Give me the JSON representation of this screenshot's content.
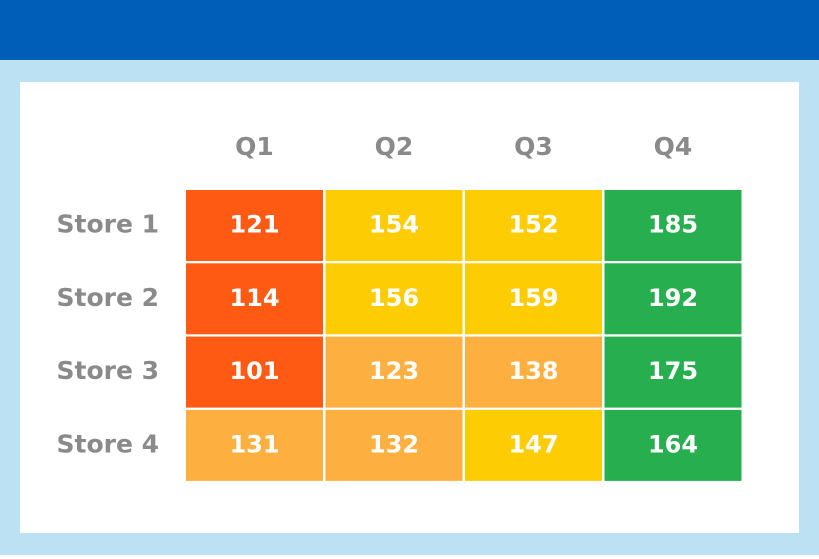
{
  "chart_data": {
    "type": "heatmap",
    "x_categories": [
      "Q1",
      "Q2",
      "Q3",
      "Q4"
    ],
    "y_categories": [
      "Store 1",
      "Store 2",
      "Store 3",
      "Store 4"
    ],
    "values": [
      [
        121,
        154,
        152,
        185
      ],
      [
        114,
        156,
        159,
        192
      ],
      [
        101,
        123,
        138,
        175
      ],
      [
        131,
        132,
        147,
        164
      ]
    ],
    "colors": [
      [
        "#fe5a14",
        "#fecc02",
        "#fecc02",
        "#27ae4f"
      ],
      [
        "#fe5a14",
        "#fecc02",
        "#fecc02",
        "#27ae4f"
      ],
      [
        "#fe5a14",
        "#fdb040",
        "#fdb040",
        "#27ae4f"
      ],
      [
        "#fdb040",
        "#fdb040",
        "#fecc02",
        "#27ae4f"
      ]
    ]
  }
}
